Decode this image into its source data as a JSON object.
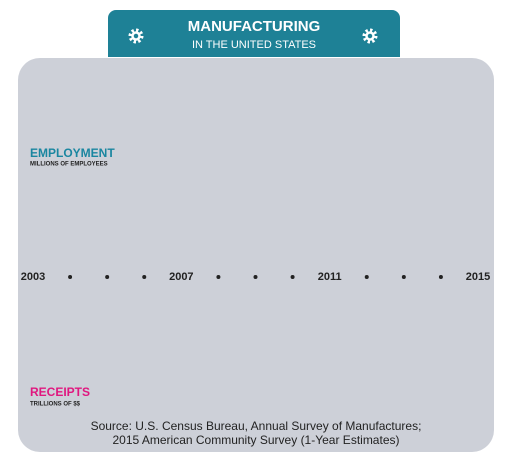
{
  "header": {
    "title": "MANUFACTURING",
    "subtitle": "IN THE UNITED STATES"
  },
  "employment": {
    "title": "EMPLOYMENT",
    "unit": "MILLIONS OF EMPLOYEES"
  },
  "timeline": {
    "labels": [
      "2003",
      null,
      null,
      null,
      "2007",
      null,
      null,
      null,
      "2011",
      null,
      null,
      null,
      "2015"
    ]
  },
  "receipts": {
    "title": "RECEIPTS",
    "unit": "TRILLIONS OF $$"
  },
  "source": [
    "Source: U.S. Census Bureau, Annual Survey of Manufactures;",
    "2015 American Community Survey (1-Year Estimates)"
  ]
}
